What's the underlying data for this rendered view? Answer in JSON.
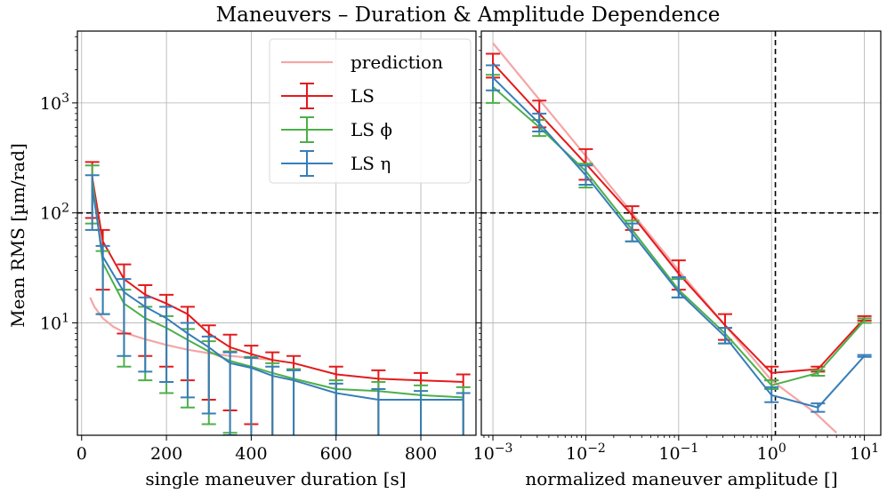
{
  "chart_data": {
    "type": "line",
    "title": "Maneuvers – Duration & Amplitude Dependence",
    "ylabel": "Mean RMS [µm/rad]",
    "ylim": [
      0.95,
      4500
    ],
    "yscale": "log",
    "y_ticks": [
      {
        "value": 10,
        "label": "10",
        "exp": "1"
      },
      {
        "value": 100,
        "label": "10",
        "exp": "2"
      },
      {
        "value": 1000,
        "label": "10",
        "exp": "3"
      }
    ],
    "legend": {
      "position": "upper-right of left panel",
      "entries": [
        {
          "key": "prediction",
          "label": "prediction",
          "style": "line"
        },
        {
          "key": "ls",
          "label": "LS",
          "style": "errorbar"
        },
        {
          "key": "ls_phi",
          "label": "LS ϕ",
          "style": "errorbar"
        },
        {
          "key": "ls_eta",
          "label": "LS η",
          "style": "errorbar"
        }
      ]
    },
    "colors": {
      "ls": "#e41a1c",
      "ls_phi": "#4daf4a",
      "ls_eta": "#377eb8",
      "prediction": "#f4a6a6"
    },
    "panels": [
      {
        "id": "duration",
        "xlabel": "single maneuver duration [s]",
        "xscale": "linear",
        "xlim": [
          -10,
          930
        ],
        "x_ticks": [
          {
            "value": 0,
            "label": "0"
          },
          {
            "value": 200,
            "label": "200"
          },
          {
            "value": 400,
            "label": "400"
          },
          {
            "value": 600,
            "label": "600"
          },
          {
            "value": 800,
            "label": "800"
          }
        ],
        "hline": 100,
        "prediction": {
          "x": [
            20,
            30,
            50,
            75,
            100,
            125,
            150,
            200,
            250,
            300,
            350,
            400,
            450
          ],
          "y": [
            17,
            14,
            11,
            9.2,
            8.2,
            7.6,
            7.1,
            6.3,
            5.7,
            5.3,
            5.0,
            4.8,
            4.6
          ]
        },
        "series": [
          {
            "key": "ls",
            "x": [
              25,
              50,
              100,
              150,
              200,
              250,
              300,
              350,
              400,
              450,
              500,
              600,
              700,
              800,
              900
            ],
            "y": [
              210,
              55,
              25,
              18,
              15,
              12,
              8,
              6,
              5.2,
              4.6,
              4.3,
              3.4,
              3.1,
              3.0,
              2.9
            ],
            "err_lo": [
              90,
              20,
              8,
              5,
              4,
              3,
              2,
              1.6,
              1.2,
              0.9,
              0.8,
              0.6,
              0.5,
              0.5,
              0.5
            ],
            "err_hi": [
              290,
              70,
              34,
              22,
              18,
              14,
              9.5,
              7.8,
              6.2,
              5.4,
              5.0,
              4.0,
              3.7,
              3.5,
              3.4
            ]
          },
          {
            "key": "ls_phi",
            "x": [
              25,
              50,
              100,
              150,
              200,
              250,
              300,
              350,
              400,
              450,
              500,
              600,
              700,
              800,
              900
            ],
            "y": [
              200,
              35,
              15,
              11,
              9,
              7,
              5.5,
              4.5,
              4.0,
              3.5,
              3.1,
              2.5,
              2.4,
              2.2,
              2.1
            ],
            "err_lo": [
              80,
              12,
              4,
              3,
              2.3,
              1.7,
              1.2,
              1.0,
              0.8,
              0.7,
              0.6,
              0.5,
              0.5,
              0.4,
              0.4
            ],
            "err_hi": [
              270,
              45,
              20,
              14,
              11.5,
              8.8,
              6.8,
              5.5,
              4.9,
              4.3,
              3.8,
              3.0,
              2.9,
              2.7,
              2.6
            ]
          },
          {
            "key": "ls_eta",
            "x": [
              25,
              50,
              100,
              150,
              200,
              250,
              300,
              350,
              400,
              450,
              500,
              600,
              700,
              800,
              900
            ],
            "y": [
              170,
              40,
              19,
              14,
              11,
              8,
              6,
              4.3,
              3.9,
              3.3,
              3.0,
              2.3,
              2.0,
              2.0,
              2.0
            ],
            "err_lo": [
              70,
              12,
              5,
              3.6,
              2.9,
              2.1,
              1.5,
              0.95,
              0.85,
              0.7,
              0.65,
              0.5,
              0.45,
              0.4,
              0.35
            ],
            "err_hi": [
              220,
              50,
              25,
              17,
              14,
              10,
              7.5,
              5.4,
              4.8,
              4.0,
              3.7,
              2.8,
              2.5,
              2.4,
              2.3
            ]
          }
        ]
      },
      {
        "id": "amplitude",
        "xlabel": "normalized maneuver amplitude []",
        "xscale": "log",
        "xlim": [
          0.00075,
          15
        ],
        "x_ticks": [
          {
            "value": 0.001,
            "label": "10",
            "exp": "−3"
          },
          {
            "value": 0.01,
            "label": "10",
            "exp": "−2"
          },
          {
            "value": 0.1,
            "label": "10",
            "exp": "−1"
          },
          {
            "value": 1,
            "label": "10",
            "exp": "0"
          },
          {
            "value": 10,
            "label": "10",
            "exp": "1"
          }
        ],
        "hline": 100,
        "vline": 1.1,
        "prediction": {
          "x": [
            0.001,
            0.01,
            0.1,
            1,
            3,
            5
          ],
          "y": [
            3500,
            330,
            30,
            3.0,
            1.5,
            1.0
          ]
        },
        "series": [
          {
            "key": "ls",
            "x": [
              0.001,
              0.00316,
              0.01,
              0.0316,
              0.1,
              0.316,
              1,
              3.16,
              10
            ],
            "y": [
              2300,
              800,
              280,
              95,
              28,
              9.5,
              3.5,
              3.8,
              11
            ],
            "err_lo": [
              1700,
              600,
              200,
              70,
              20,
              7,
              3.0,
              3.6,
              10.5
            ],
            "err_hi": [
              2800,
              1050,
              380,
              115,
              37,
              12,
              4.0,
              4.0,
              11.5
            ]
          },
          {
            "key": "ls_phi",
            "x": [
              0.001,
              0.00316,
              0.01,
              0.0316,
              0.1,
              0.316,
              1,
              3.16,
              10
            ],
            "y": [
              1400,
              600,
              240,
              70,
              20,
              8,
              2.7,
              3.5,
              10.5
            ],
            "err_lo": [
              1000,
              500,
              170,
              55,
              17,
              6.5,
              2.5,
              3.3,
              10
            ],
            "err_hi": [
              1800,
              700,
              280,
              85,
              25,
              9,
              3.0,
              3.7,
              11
            ]
          },
          {
            "key": "ls_eta",
            "x": [
              0.001,
              0.00316,
              0.01,
              0.0316,
              0.1,
              0.316,
              1,
              3.16,
              10
            ],
            "y": [
              1700,
              650,
              220,
              65,
              19,
              7.5,
              2.2,
              1.7,
              5
            ],
            "err_lo": [
              1300,
              550,
              180,
              55,
              17,
              6.5,
              1.9,
              1.55,
              4.9
            ],
            "err_hi": [
              2200,
              800,
              270,
              80,
              26,
              9,
              2.6,
              1.85,
              5.1
            ]
          }
        ]
      }
    ]
  }
}
